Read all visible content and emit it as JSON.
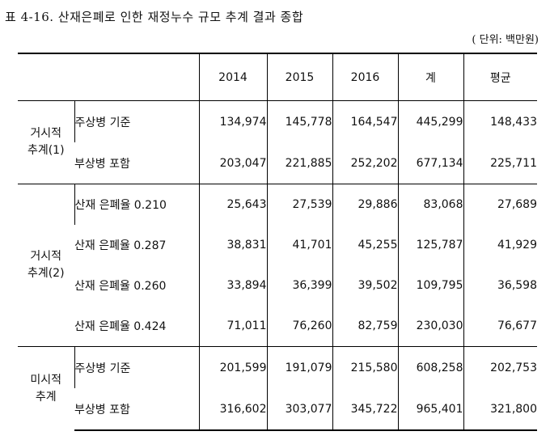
{
  "title": "표 4-16. 산재은폐로 인한 재정누수 규모 추계 결과 종합",
  "unit": "( 단위: 백만원)",
  "table": {
    "headers": [
      "2014",
      "2015",
      "2016",
      "계",
      "평균"
    ],
    "groups": [
      {
        "label_line1": "거시적",
        "label_line2": "추계(1)",
        "rows": [
          {
            "label": "주상병 기준",
            "values": [
              "134,974",
              "145,778",
              "164,547",
              "445,299",
              "148,433"
            ]
          },
          {
            "label": "부상병 포함",
            "values": [
              "203,047",
              "221,885",
              "252,202",
              "677,134",
              "225,711"
            ]
          }
        ]
      },
      {
        "label_line1": "거시적",
        "label_line2": "추계(2)",
        "rows": [
          {
            "label": "산재 은폐율 0.210",
            "values": [
              "25,643",
              "27,539",
              "29,886",
              "83,068",
              "27,689"
            ]
          },
          {
            "label": "산재 은폐율 0.287",
            "values": [
              "38,831",
              "41,701",
              "45,255",
              "125,787",
              "41,929"
            ]
          },
          {
            "label": "산재 은폐율 0.260",
            "values": [
              "33,894",
              "36,399",
              "39,502",
              "109,795",
              "36,598"
            ]
          },
          {
            "label": "산재 은폐율 0.424",
            "values": [
              "71,011",
              "76,260",
              "82,759",
              "230,030",
              "76,677"
            ]
          }
        ]
      },
      {
        "label_line1": "미시적",
        "label_line2": "추계",
        "rows": [
          {
            "label": "주상병 기준",
            "values": [
              "201,599",
              "191,079",
              "215,580",
              "608,258",
              "202,753"
            ]
          },
          {
            "label": "부상병 포함",
            "values": [
              "316,602",
              "303,077",
              "345,722",
              "965,401",
              "321,800"
            ]
          }
        ]
      }
    ]
  }
}
